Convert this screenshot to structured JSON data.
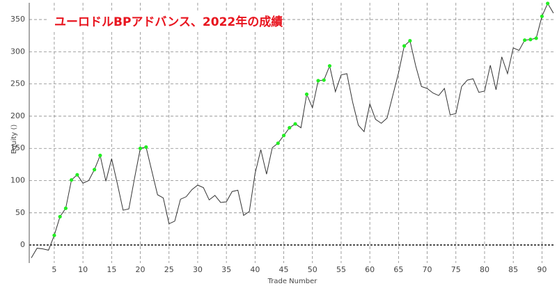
{
  "chart_data": {
    "type": "line",
    "title": "ユーロドルBPアドバンス、2022年の成績",
    "xlabel": "Trade Number",
    "ylabel": "Equity ()",
    "x": [
      1,
      2,
      3,
      4,
      5,
      6,
      7,
      8,
      9,
      10,
      11,
      12,
      13,
      14,
      15,
      16,
      17,
      18,
      19,
      20,
      21,
      22,
      23,
      24,
      25,
      26,
      27,
      28,
      29,
      30,
      31,
      32,
      33,
      34,
      35,
      36,
      37,
      38,
      39,
      40,
      41,
      42,
      43,
      44,
      45,
      46,
      47,
      48,
      49,
      50,
      51,
      52,
      53,
      54,
      55,
      56,
      57,
      58,
      59,
      60,
      61,
      62,
      63,
      64,
      65,
      66,
      67,
      68,
      69,
      70,
      71,
      72,
      73,
      74,
      75,
      76,
      77,
      78,
      79,
      80,
      81,
      82,
      83,
      84,
      85,
      86,
      87,
      88,
      89,
      90,
      91,
      92
    ],
    "series": [
      {
        "name": "Equity",
        "color": "#333333",
        "values": [
          -20,
          -5,
          -6,
          -8,
          15,
          44,
          57,
          101,
          109,
          96,
          100,
          117,
          139,
          99,
          134,
          95,
          54,
          56,
          104,
          150,
          152,
          115,
          78,
          73,
          33,
          37,
          71,
          75,
          86,
          93,
          89,
          70,
          77,
          66,
          67,
          83,
          85,
          46,
          52,
          111,
          148,
          110,
          151,
          158,
          170,
          182,
          188,
          182,
          234,
          213,
          255,
          256,
          278,
          238,
          264,
          266,
          222,
          186,
          176,
          219,
          195,
          189,
          197,
          232,
          267,
          309,
          317,
          278,
          246,
          243,
          236,
          232,
          243,
          202,
          204,
          246,
          256,
          258,
          237,
          239,
          279,
          241,
          292,
          266,
          306,
          302,
          318,
          319,
          321,
          355,
          375,
          360
        ]
      }
    ],
    "highlight_new_highs": true,
    "marker_color": "#22ee22",
    "title_color": "#e8141e",
    "xlim": [
      0.64,
      92.26
    ],
    "ylim": [
      -28,
      376
    ],
    "xticks": [
      5,
      10,
      15,
      20,
      25,
      30,
      35,
      40,
      45,
      50,
      55,
      60,
      65,
      70,
      75,
      80,
      85,
      90
    ],
    "yticks": [
      0,
      50,
      100,
      150,
      200,
      250,
      300,
      350
    ],
    "grid": true
  }
}
